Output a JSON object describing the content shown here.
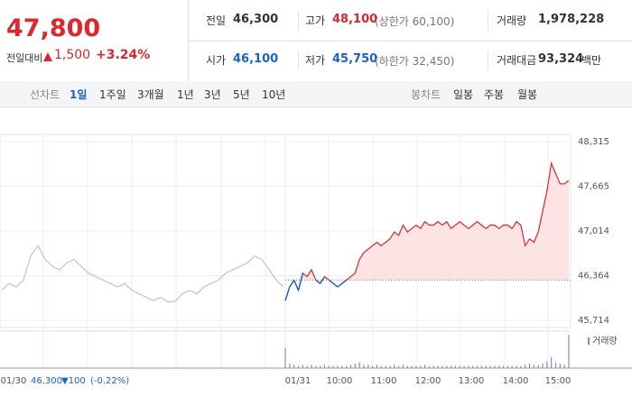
{
  "quote": {
    "price": "47,800",
    "change_label": "전일대비",
    "change": "1,500",
    "change_rate": "+3.24%"
  },
  "summary": [
    {
      "label": "전일",
      "value": "46,300"
    },
    {
      "label": "고가",
      "value": "48,100",
      "note": "(상한가 60,100)"
    },
    {
      "label": "거래량",
      "value": "1,978,228"
    },
    {
      "label": "시가",
      "value": "46,100"
    },
    {
      "label": "저가",
      "value": "45,750",
      "note": "(하한가 32,450)"
    },
    {
      "label": "거래대금",
      "value": "93,324",
      "unit": "백만"
    }
  ],
  "tabs": {
    "line_label": "선차트",
    "line": [
      "1일",
      "1주일",
      "3개월",
      "1년",
      "3년",
      "5년",
      "10년"
    ],
    "candle_label": "봉차트",
    "candle": [
      "일봉",
      "주봉",
      "월봉"
    ]
  },
  "chart_data": {
    "type": "line",
    "ylim": [
      45714,
      48315
    ],
    "yticks": [
      {
        "value": 48315,
        "label": "48,315"
      },
      {
        "value": 47665,
        "label": "47,665"
      },
      {
        "value": 47014,
        "label": "47,014"
      },
      {
        "value": 46364,
        "label": "46,364"
      },
      {
        "value": 45714,
        "label": "45,714"
      }
    ],
    "base": 46300,
    "series": [
      {
        "color": "#c4c4c4",
        "values": [
          46150,
          46250,
          46200,
          46300,
          46650,
          46800,
          46600,
          46500,
          46450,
          46550,
          46600,
          46500,
          46400,
          46350,
          46300,
          46250,
          46200,
          46250,
          46150,
          46100,
          46050,
          46000,
          46050,
          45980,
          45990,
          46100,
          46150,
          46100,
          46200,
          46250,
          46300,
          46400,
          46450,
          46500,
          46550,
          46650,
          46600,
          46450,
          46300,
          46200
        ]
      },
      {
        "color": "#e0262d",
        "values": [
          46000,
          46200,
          46300,
          46150,
          46400,
          46350,
          46450,
          46300,
          46250,
          46350,
          46300,
          46250,
          46200,
          46250,
          46300,
          46350,
          46400,
          46600,
          46700,
          46750,
          46800,
          46850,
          46800,
          46850,
          46900,
          47000,
          46950,
          47100,
          47000,
          47050,
          47100,
          47050,
          47150,
          47100,
          47100,
          47150,
          47100,
          47150,
          47050,
          47100,
          47150,
          47100,
          47050,
          47100,
          47150,
          47100,
          47050,
          47100,
          47100,
          47050,
          47100,
          47100,
          47050,
          47150,
          47100,
          46800,
          46900,
          46850,
          47000,
          47300,
          47600,
          48000,
          47850,
          47700,
          47700,
          47750
        ]
      }
    ],
    "volume": {
      "label": "거래량",
      "color": "#9b7fc2",
      "values": [
        18,
        4,
        3,
        2,
        3,
        2,
        3,
        2,
        2,
        3,
        2,
        2,
        2,
        2,
        2,
        3,
        4,
        5,
        3,
        3,
        2,
        3,
        2,
        2,
        2,
        3,
        2,
        3,
        2,
        2,
        2,
        2,
        3,
        2,
        2,
        2,
        2,
        2,
        2,
        2,
        2,
        2,
        2,
        2,
        2,
        2,
        2,
        2,
        2,
        2,
        2,
        2,
        2,
        2,
        2,
        3,
        4,
        3,
        3,
        4,
        6,
        10,
        5,
        4,
        3,
        30
      ]
    },
    "x_labels": [
      "01/30",
      "01/31",
      "10:00",
      "11:00",
      "12:00",
      "13:00",
      "14:00",
      "15:00"
    ],
    "prev_day": {
      "close": "46,300",
      "change": "▼100",
      "rate": "(-0.22%)"
    }
  }
}
